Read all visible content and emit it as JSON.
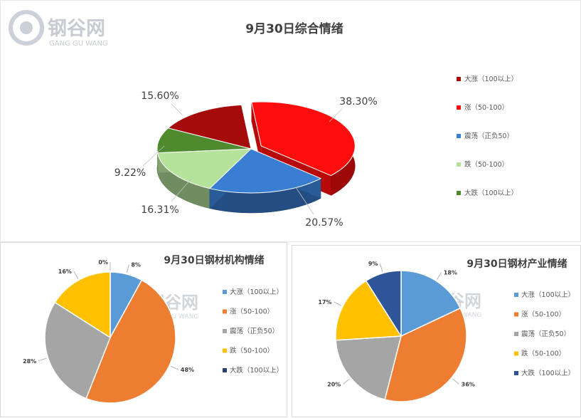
{
  "watermark": {
    "cn": "钢谷网",
    "en": "GANG GU WANG"
  },
  "chart_data": [
    {
      "type": "pie",
      "title": "9月30日综合情绪",
      "labels": [
        "大涨（100以上）",
        "涨（50-100）",
        "震荡（正负50）",
        "跌（50-100）",
        "大跌（100以上）"
      ],
      "values": [
        15.6,
        38.3,
        20.57,
        16.31,
        9.22
      ],
      "value_labels": [
        "15.60%",
        "38.30%",
        "20.57%",
        "16.31%",
        "9.22%"
      ],
      "colors": [
        "#a50b0b",
        "#ff0d0d",
        "#3a7ed4",
        "#b5e39c",
        "#4e8a2e"
      ],
      "legend": "right"
    },
    {
      "type": "pie",
      "title": "9月30日钢材机构情绪",
      "labels": [
        "大涨（100以上）",
        "涨（50-100）",
        "震荡（正负50）",
        "跌（50-100）",
        "大跌（100以上）"
      ],
      "values": [
        8,
        48,
        28,
        16,
        0
      ],
      "value_labels": [
        "8%",
        "48%",
        "28%",
        "16%",
        "0%"
      ],
      "colors": [
        "#5b9bd5",
        "#ed7d31",
        "#a5a5a5",
        "#ffc000",
        "#264478"
      ],
      "legend": "right"
    },
    {
      "type": "pie",
      "title": "9月30日钢材产业情绪",
      "labels": [
        "大涨（100以上）",
        "涨（50-100）",
        "震荡（正负50）",
        "跌（50-100）",
        "大跌（100以上）"
      ],
      "values": [
        18,
        36,
        20,
        17,
        9
      ],
      "value_labels": [
        "18%",
        "36%",
        "20%",
        "17%",
        "9%"
      ],
      "colors": [
        "#5b9bd5",
        "#ed7d31",
        "#a5a5a5",
        "#ffc000",
        "#2e5597"
      ],
      "legend": "right"
    }
  ]
}
